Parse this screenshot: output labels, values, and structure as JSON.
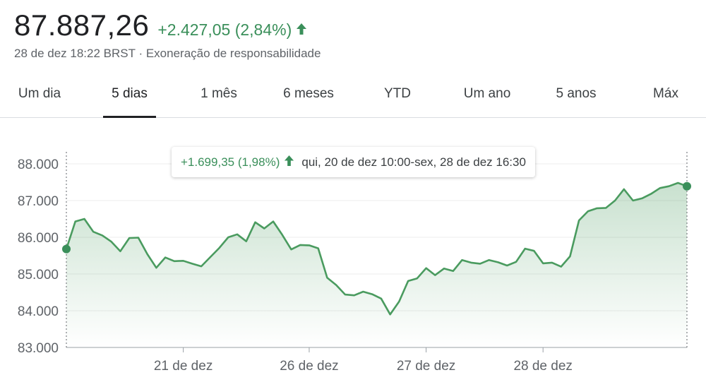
{
  "header": {
    "price": "87.887,26",
    "change": "+2.427,05 (2,84%)",
    "timestamp": "28 de dez 18:22 BRST",
    "separator": "·",
    "disclaimer": "Exoneração de responsabilidade"
  },
  "colors": {
    "up": "#3a8f5a",
    "line": "#4a9b5f",
    "text": "#202124",
    "muted": "#5f6368"
  },
  "tabs": [
    {
      "label": "Um dia"
    },
    {
      "label": "5 dias",
      "active": true
    },
    {
      "label": "1 mês"
    },
    {
      "label": "6 meses"
    },
    {
      "label": "YTD"
    },
    {
      "label": "Um ano"
    },
    {
      "label": "5 anos"
    },
    {
      "label": "Máx"
    }
  ],
  "tooltip": {
    "change": "+1.699,35 (1,98%)",
    "range": "qui, 20 de dez 10:00-sex, 28 de dez 16:30"
  },
  "chart_data": {
    "type": "area",
    "ylim": [
      83000,
      88000
    ],
    "yticks": [
      "88.000",
      "87.000",
      "86.000",
      "85.000",
      "84.000",
      "83.000"
    ],
    "ytick_values": [
      88000,
      87000,
      86000,
      85000,
      84000,
      83000
    ],
    "xtick_labels": [
      "21 de dez",
      "26 de dez",
      "27 de dez",
      "28 de dez"
    ],
    "xtick_index": [
      13,
      27,
      40,
      53
    ],
    "series": [
      {
        "values": [
          85680,
          86430,
          86500,
          86150,
          86050,
          85880,
          85620,
          85980,
          85990,
          85540,
          85170,
          85450,
          85350,
          85360,
          85280,
          85210,
          85460,
          85710,
          86000,
          86080,
          85890,
          86410,
          86240,
          86430,
          86070,
          85670,
          85790,
          85780,
          85700,
          84900,
          84700,
          84440,
          84420,
          84520,
          84450,
          84330,
          83900,
          84250,
          84810,
          84880,
          85160,
          84970,
          85150,
          85080,
          85380,
          85310,
          85280,
          85380,
          85320,
          85230,
          85330,
          85690,
          85630,
          85290,
          85310,
          85200,
          85480,
          86460,
          86710,
          86790,
          86800,
          87000,
          87310,
          87000,
          87060,
          87180,
          87340,
          87390,
          87480,
          87390
        ]
      }
    ]
  }
}
